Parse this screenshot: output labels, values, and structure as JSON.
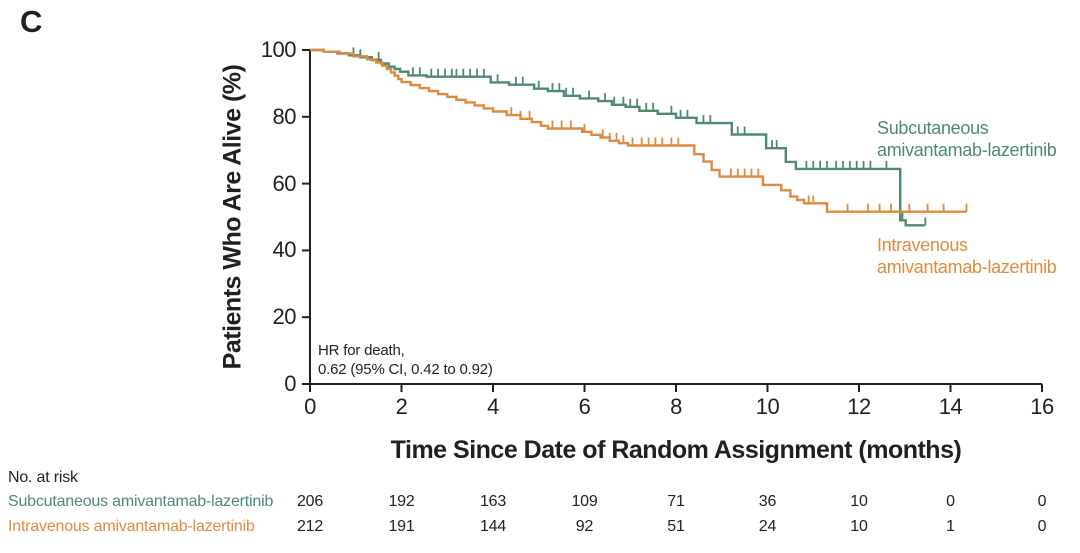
{
  "panel_label": "C",
  "colors": {
    "subcutaneous": "#4e8b6d",
    "intravenous": "#dd8b3f",
    "axis": "#231f20",
    "background": "#ffffff"
  },
  "chart_data": {
    "type": "line",
    "subtype": "kaplan-meier-step",
    "title": "",
    "xlabel": "Time Since Date of Random Assignment (months)",
    "ylabel": "Patients Who Are Alive (%)",
    "xlim": [
      0,
      16
    ],
    "ylim": [
      0,
      100
    ],
    "x_ticks": [
      0,
      2,
      4,
      6,
      8,
      10,
      12,
      14,
      16
    ],
    "y_ticks": [
      0,
      20,
      40,
      60,
      80,
      100
    ],
    "grid": false,
    "legend_position": "right-inline-labels",
    "annotation": {
      "lines": [
        "HR for death,",
        "0.62 (95% CI, 0.42 to 0.92)"
      ]
    },
    "series": [
      {
        "name": "Subcutaneous amivantamab-lazertinib",
        "label_lines": [
          "Subcutaneous",
          "amivantamab-lazertinib"
        ],
        "color": "#4e8b6d",
        "points": [
          [
            0,
            100
          ],
          [
            0.3,
            99.5
          ],
          [
            0.6,
            99.0
          ],
          [
            0.85,
            98.4
          ],
          [
            1.1,
            97.8
          ],
          [
            1.35,
            97.0
          ],
          [
            1.55,
            96.0
          ],
          [
            1.72,
            95.0
          ],
          [
            1.85,
            94.3
          ],
          [
            1.97,
            93.5
          ],
          [
            2.15,
            92.4
          ],
          [
            2.55,
            92.0
          ],
          [
            3.95,
            90.3
          ],
          [
            4.35,
            89.6
          ],
          [
            4.9,
            88.4
          ],
          [
            5.2,
            87.7
          ],
          [
            5.55,
            86.3
          ],
          [
            5.9,
            85.5
          ],
          [
            6.3,
            84.7
          ],
          [
            6.6,
            83.6
          ],
          [
            6.9,
            83.0
          ],
          [
            7.2,
            81.8
          ],
          [
            7.6,
            80.9
          ],
          [
            8.0,
            79.7
          ],
          [
            8.45,
            78.1
          ],
          [
            9.22,
            74.7
          ],
          [
            9.97,
            70.6
          ],
          [
            10.4,
            66.5
          ],
          [
            10.62,
            64.4
          ],
          [
            12.9,
            49.0
          ],
          [
            13.02,
            47.5
          ],
          [
            13.45,
            47.5
          ]
        ],
        "censor_ticks": [
          0.95,
          1.1,
          1.5,
          2.25,
          2.4,
          2.65,
          2.8,
          2.95,
          3.1,
          3.2,
          3.35,
          3.5,
          3.65,
          3.8,
          4.1,
          4.5,
          4.65,
          5.0,
          5.3,
          5.45,
          5.6,
          5.75,
          6.1,
          6.45,
          6.65,
          6.85,
          7.0,
          7.15,
          7.35,
          7.5,
          7.9,
          8.1,
          8.25,
          8.6,
          8.75,
          9.35,
          9.5,
          10.1,
          10.2,
          10.85,
          11.0,
          11.15,
          11.3,
          11.5,
          11.65,
          11.8,
          11.95,
          12.1,
          12.25,
          12.6,
          12.95,
          13.45
        ]
      },
      {
        "name": "Intravenous amivantamab-lazertinib",
        "label_lines": [
          "Intravenous",
          "amivantamab-lazertinib"
        ],
        "color": "#dd8b3f",
        "points": [
          [
            0,
            100
          ],
          [
            0.3,
            99.5
          ],
          [
            0.65,
            98.9
          ],
          [
            0.95,
            98.1
          ],
          [
            1.25,
            97.2
          ],
          [
            1.45,
            96.3
          ],
          [
            1.58,
            95.3
          ],
          [
            1.68,
            94.3
          ],
          [
            1.77,
            93.3
          ],
          [
            1.85,
            92.3
          ],
          [
            1.93,
            91.3
          ],
          [
            2.0,
            90.4
          ],
          [
            2.2,
            89.5
          ],
          [
            2.4,
            88.6
          ],
          [
            2.6,
            87.7
          ],
          [
            2.8,
            86.8
          ],
          [
            3.0,
            86.0
          ],
          [
            3.2,
            85.1
          ],
          [
            3.4,
            84.3
          ],
          [
            3.6,
            83.4
          ],
          [
            3.8,
            82.5
          ],
          [
            4.0,
            81.6
          ],
          [
            4.3,
            80.5
          ],
          [
            4.6,
            79.4
          ],
          [
            4.85,
            78.4
          ],
          [
            5.05,
            77.3
          ],
          [
            5.2,
            76.5
          ],
          [
            5.95,
            75.5
          ],
          [
            6.15,
            74.6
          ],
          [
            6.35,
            73.8
          ],
          [
            6.55,
            72.8
          ],
          [
            6.75,
            72.1
          ],
          [
            6.95,
            71.4
          ],
          [
            8.4,
            68.8
          ],
          [
            8.6,
            66.6
          ],
          [
            8.78,
            64.1
          ],
          [
            8.95,
            62.1
          ],
          [
            9.9,
            59.6
          ],
          [
            10.3,
            58.0
          ],
          [
            10.5,
            56.1
          ],
          [
            10.65,
            55.1
          ],
          [
            10.8,
            54.1
          ],
          [
            11.3,
            51.6
          ],
          [
            14.35,
            51.6
          ]
        ],
        "censor_ticks": [
          4.4,
          4.6,
          4.8,
          5.3,
          5.5,
          5.7,
          6.0,
          6.4,
          6.55,
          6.7,
          6.85,
          7.05,
          7.25,
          7.4,
          7.55,
          7.7,
          7.9,
          8.05,
          9.2,
          9.35,
          9.5,
          9.65,
          9.8,
          10.9,
          11.0,
          11.75,
          12.2,
          12.45,
          12.7,
          13.1,
          13.5,
          13.85,
          14.35
        ]
      }
    ]
  },
  "risk_table": {
    "title": "No. at risk",
    "timepoints": [
      0,
      2,
      4,
      6,
      8,
      10,
      12,
      14,
      16
    ],
    "rows": [
      {
        "label": "Subcutaneous amivantamab-lazertinib",
        "color": "#4e8b6d",
        "values": [
          206,
          192,
          163,
          109,
          71,
          36,
          10,
          0,
          0
        ]
      },
      {
        "label": "Intravenous amivantamab-lazertinib",
        "color": "#dd8b3f",
        "values": [
          212,
          191,
          144,
          92,
          51,
          24,
          10,
          1,
          0
        ]
      }
    ]
  }
}
